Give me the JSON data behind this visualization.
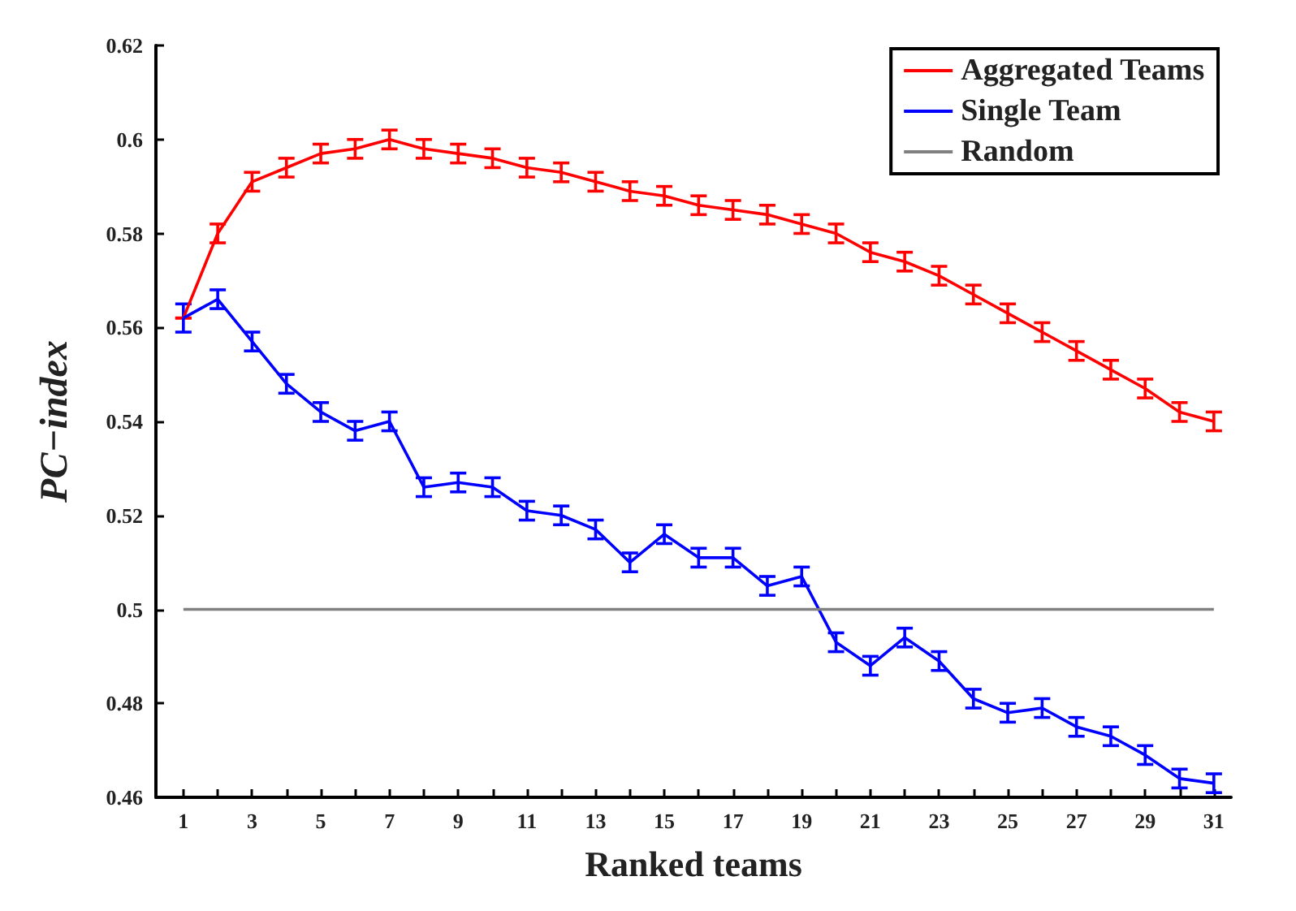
{
  "chart_data": {
    "type": "line",
    "xlabel": "Ranked teams",
    "ylabel": "PC−index",
    "legend": "top right",
    "grid": false,
    "marker": "none",
    "line_style": "solid",
    "xlim": [
      0.2,
      31.5
    ],
    "xticks": [
      1,
      {
        "value": 2,
        "label": null
      },
      3,
      {
        "value": 4,
        "label": null
      },
      5,
      {
        "value": 6,
        "label": null
      },
      7,
      {
        "value": 8,
        "label": null
      },
      9,
      {
        "value": 10,
        "label": null
      },
      11,
      {
        "value": 12,
        "label": null
      },
      13,
      {
        "value": 14,
        "label": null
      },
      15,
      {
        "value": 16,
        "label": null
      },
      17,
      {
        "value": 18,
        "label": null
      },
      19,
      {
        "value": 20,
        "label": null
      },
      21,
      {
        "value": 22,
        "label": null
      },
      23,
      {
        "value": 24,
        "label": null
      },
      25,
      {
        "value": 26,
        "label": null
      },
      27,
      {
        "value": 28,
        "label": null
      },
      29,
      {
        "value": 30,
        "label": null
      },
      31
    ],
    "ylim": [
      0.46,
      0.62
    ],
    "yticks": [
      0.46,
      0.48,
      0.5,
      0.52,
      0.54,
      0.56,
      0.58,
      0.6,
      0.62
    ],
    "x": [
      1,
      2,
      3,
      4,
      5,
      6,
      7,
      8,
      9,
      10,
      11,
      12,
      13,
      14,
      15,
      16,
      17,
      18,
      19,
      20,
      21,
      22,
      23,
      24,
      25,
      26,
      27,
      28,
      29,
      30,
      31
    ],
    "series": [
      {
        "name": "Aggregated Teams",
        "color": "#ff0000",
        "values": [
          0.562,
          0.58,
          0.591,
          0.594,
          0.597,
          0.598,
          0.6,
          0.598,
          0.597,
          0.596,
          0.594,
          0.593,
          0.591,
          0.589,
          0.588,
          0.586,
          0.585,
          0.584,
          0.582,
          0.58,
          0.576,
          0.574,
          0.571,
          0.567,
          0.563,
          0.559,
          0.555,
          0.551,
          0.547,
          0.542,
          0.54
        ],
        "errors": [
          null,
          0.002,
          0.002,
          0.002,
          0.002,
          0.002,
          0.002,
          0.002,
          0.002,
          0.002,
          0.002,
          0.002,
          0.002,
          0.002,
          0.002,
          0.002,
          0.002,
          0.002,
          0.002,
          0.002,
          0.002,
          0.002,
          0.002,
          0.002,
          0.002,
          0.002,
          0.002,
          0.002,
          0.002,
          0.002,
          0.002
        ]
      },
      {
        "name": "Single Team",
        "color": "#0000ff",
        "values": [
          0.562,
          0.566,
          0.557,
          0.548,
          0.542,
          0.538,
          0.54,
          0.526,
          0.527,
          0.526,
          0.521,
          0.52,
          0.517,
          0.51,
          0.516,
          0.511,
          0.511,
          0.505,
          0.507,
          0.493,
          0.488,
          0.494,
          0.489,
          0.481,
          0.478,
          0.479,
          0.475,
          0.473,
          0.469,
          0.464,
          0.463
        ],
        "errors": [
          0.003,
          0.002,
          0.002,
          0.002,
          0.002,
          0.002,
          0.002,
          0.002,
          0.002,
          0.002,
          0.002,
          0.002,
          0.002,
          0.002,
          0.002,
          0.002,
          0.002,
          0.002,
          0.002,
          0.002,
          0.002,
          0.002,
          0.002,
          0.002,
          0.002,
          0.002,
          0.002,
          0.002,
          0.002,
          0.002,
          0.002
        ]
      },
      {
        "name": "Random",
        "color": "#808080",
        "x": [
          1,
          31
        ],
        "values": [
          0.5,
          0.5
        ]
      }
    ]
  }
}
